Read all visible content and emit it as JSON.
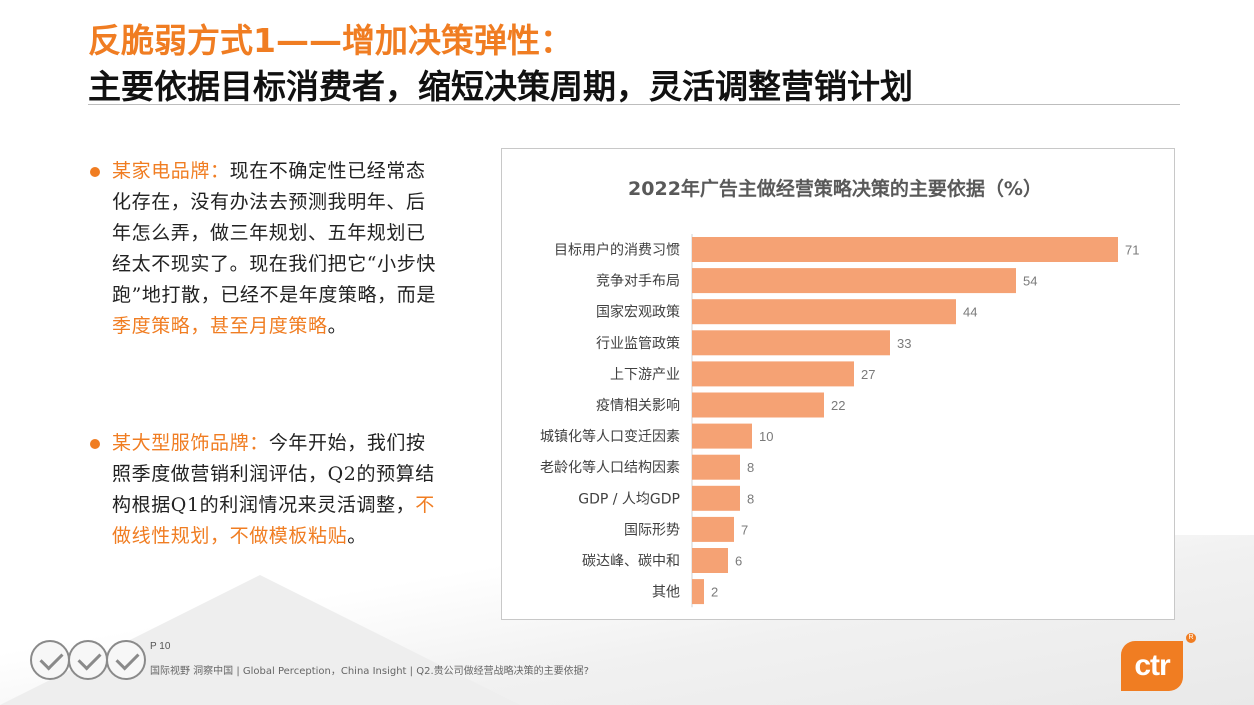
{
  "header": {
    "title_line1": "反脆弱方式1——增加决策弹性：",
    "title_line2": "主要依据目标消费者，缩短决策周期，灵活调整营销计划"
  },
  "quotes": [
    {
      "speaker": "某家电品牌：",
      "text": "现在不确定性已经常态化存在，没有办法去预测我明年、后年怎么弄，做三年规划、五年规划已经太不现实了。现在我们把它“小步快跑”地打散，已经不是年度策略，而是",
      "highlight": "季度策略，甚至月度策略",
      "tail": "。"
    },
    {
      "speaker": "某大型服饰品牌：",
      "text": "今年开始，我们按照季度做营销利润评估，Q2的预算结构根据Q1的利润情况来灵活调整，",
      "highlight": "不做线性规划，不做模板粘贴",
      "tail": "。"
    }
  ],
  "chart_data": {
    "type": "bar",
    "orientation": "horizontal",
    "title": "2022年广告主做经营策略决策的主要依据（%）",
    "categories": [
      "目标用户的消费习惯",
      "竞争对手布局",
      "国家宏观政策",
      "行业监管政策",
      "上下游产业",
      "疫情相关影响",
      "城镇化等人口变迁因素",
      "老龄化等人口结构因素",
      "GDP / 人均GDP",
      "国际形势",
      "碳达峰、碳中和",
      "其他"
    ],
    "values": [
      71,
      54,
      44,
      33,
      27,
      22,
      10,
      8,
      8,
      7,
      6,
      2
    ],
    "xlim": [
      0,
      75
    ],
    "bar_color": "#f5a274",
    "grid": false,
    "legend": "none"
  },
  "footer": {
    "page": "P 10",
    "text": "国际视野 洞察中国 | Global Perception，China Insight | Q2.贵公司做经营战略决策的主要依据?",
    "logo_text": "ctr",
    "logo_mark": "R"
  },
  "colors": {
    "accent": "#f07d22",
    "bar": "#f5a274"
  },
  "icons": [
    "certification-badge-icon",
    "certification-badge-icon",
    "certification-badge-icon"
  ]
}
